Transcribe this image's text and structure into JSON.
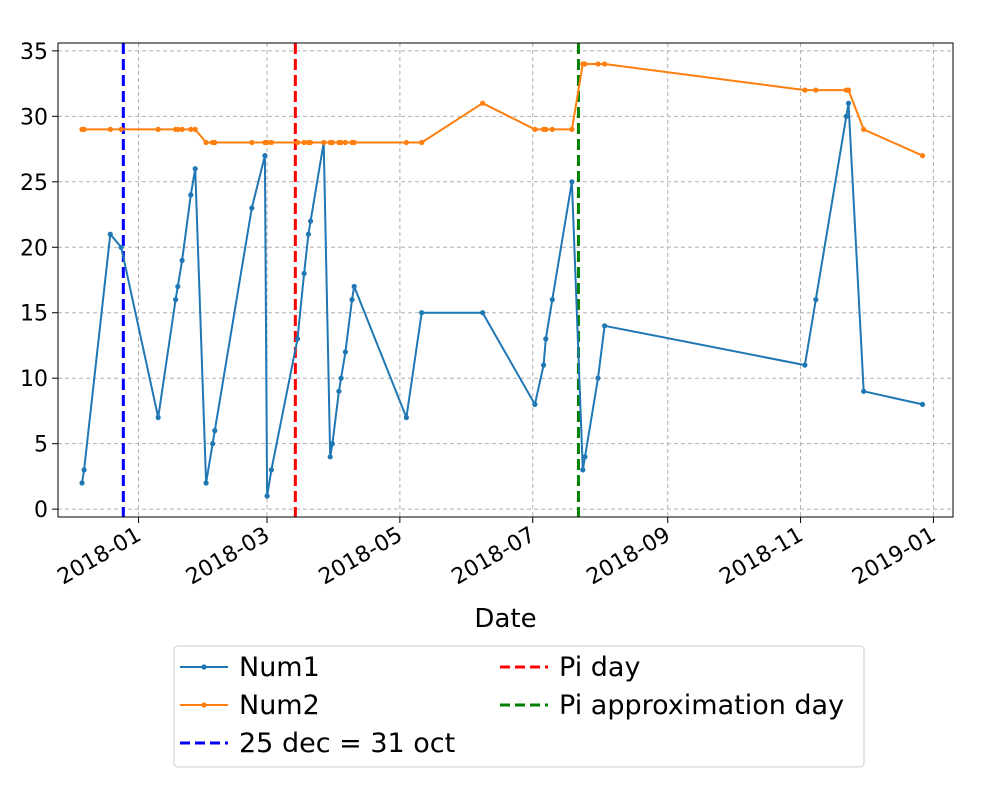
{
  "chart_data": {
    "type": "line",
    "title": "",
    "xlabel": "Date",
    "ylabel": "",
    "x_type": "date",
    "xlim": [
      "2017-11-25",
      "2019-01-10"
    ],
    "ylim": [
      -0.6,
      35.6
    ],
    "x_ticks": [
      "2018-01-01",
      "2018-03-01",
      "2018-05-01",
      "2018-07-01",
      "2018-09-01",
      "2018-11-01",
      "2019-01-01"
    ],
    "x_tick_labels": [
      "2018-01",
      "2018-03",
      "2018-05",
      "2018-07",
      "2018-09",
      "2018-11",
      "2019-01"
    ],
    "y_ticks": [
      0,
      5,
      10,
      15,
      20,
      25,
      30,
      35
    ],
    "y_tick_labels": [
      "0",
      "5",
      "10",
      "15",
      "20",
      "25",
      "30",
      "35"
    ],
    "grid": true,
    "legend_position": "below",
    "series": [
      {
        "name": "Num1",
        "color": "#1f77b4",
        "marker": "dot",
        "x": [
          "2017-12-06",
          "2017-12-07",
          "2017-12-19",
          "2017-12-24",
          "2018-01-10",
          "2018-01-18",
          "2018-01-19",
          "2018-01-21",
          "2018-01-25",
          "2018-01-27",
          "2018-02-01",
          "2018-02-04",
          "2018-02-05",
          "2018-02-22",
          "2018-02-28",
          "2018-03-01",
          "2018-03-03",
          "2018-03-15",
          "2018-03-18",
          "2018-03-20",
          "2018-03-21",
          "2018-03-27",
          "2018-03-30",
          "2018-03-31",
          "2018-04-03",
          "2018-04-04",
          "2018-04-06",
          "2018-04-09",
          "2018-04-10",
          "2018-05-04",
          "2018-05-11",
          "2018-06-08",
          "2018-07-02",
          "2018-07-06",
          "2018-07-07",
          "2018-07-10",
          "2018-07-19",
          "2018-07-24",
          "2018-07-25",
          "2018-07-31",
          "2018-08-03",
          "2018-11-03",
          "2018-11-08",
          "2018-11-22",
          "2018-11-23",
          "2018-11-30",
          "2018-12-27"
        ],
        "values": [
          2,
          3,
          21,
          20,
          7,
          16,
          17,
          19,
          24,
          26,
          2,
          5,
          6,
          23,
          27,
          1,
          3,
          13,
          18,
          21,
          22,
          28,
          4,
          5,
          9,
          10,
          12,
          16,
          17,
          7,
          15,
          15,
          8,
          11,
          13,
          16,
          25,
          3,
          4,
          10,
          14,
          11,
          16,
          30,
          31,
          9,
          8
        ]
      },
      {
        "name": "Num2",
        "color": "#ff7f0e",
        "marker": "dot",
        "x": [
          "2017-12-06",
          "2017-12-07",
          "2017-12-19",
          "2017-12-24",
          "2018-01-10",
          "2018-01-18",
          "2018-01-19",
          "2018-01-21",
          "2018-01-25",
          "2018-01-27",
          "2018-02-01",
          "2018-02-04",
          "2018-02-05",
          "2018-02-22",
          "2018-02-28",
          "2018-03-01",
          "2018-03-03",
          "2018-03-15",
          "2018-03-18",
          "2018-03-20",
          "2018-03-21",
          "2018-03-27",
          "2018-03-30",
          "2018-03-31",
          "2018-04-03",
          "2018-04-04",
          "2018-04-06",
          "2018-04-09",
          "2018-04-10",
          "2018-05-04",
          "2018-05-11",
          "2018-06-08",
          "2018-07-02",
          "2018-07-06",
          "2018-07-07",
          "2018-07-10",
          "2018-07-19",
          "2018-07-24",
          "2018-07-25",
          "2018-07-31",
          "2018-08-03",
          "2018-11-03",
          "2018-11-08",
          "2018-11-22",
          "2018-11-23",
          "2018-11-30",
          "2018-12-27"
        ],
        "values": [
          29,
          29,
          29,
          29,
          29,
          29,
          29,
          29,
          29,
          29,
          28,
          28,
          28,
          28,
          28,
          28,
          28,
          28,
          28,
          28,
          28,
          28,
          28,
          28,
          28,
          28,
          28,
          28,
          28,
          28,
          28,
          31,
          29,
          29,
          29,
          29,
          29,
          34,
          34,
          34,
          34,
          32,
          32,
          32,
          32,
          29,
          27
        ]
      }
    ],
    "reference_lines": [
      {
        "name": "25 dec = 31 oct",
        "x": "2017-12-25",
        "color": "#0000ff",
        "style": "dashed"
      },
      {
        "name": "Pi day",
        "x": "2018-03-14",
        "color": "#ff0000",
        "style": "dashed"
      },
      {
        "name": "Pi approximation day",
        "x": "2018-07-22",
        "color": "#008000",
        "style": "dashed"
      }
    ]
  }
}
